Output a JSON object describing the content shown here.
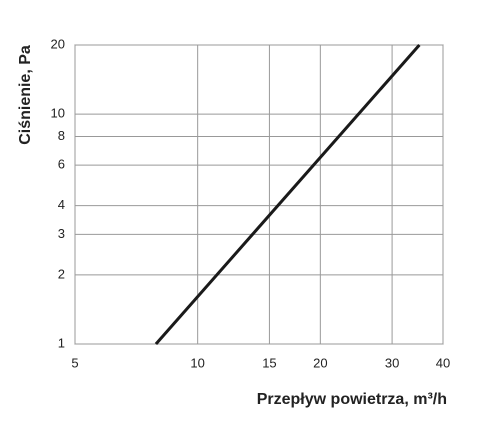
{
  "chart_data": {
    "type": "line",
    "x_label": "Przepływ powietrza, m³/h",
    "y_label": "Ciśnienie, Pa",
    "xscale": "log",
    "yscale": "log",
    "xlim": [
      5,
      40
    ],
    "ylim": [
      1,
      20
    ],
    "xticks": [
      5,
      10,
      15,
      20,
      30,
      40
    ],
    "yticks": [
      1,
      2,
      3,
      4,
      6,
      8,
      10,
      20
    ],
    "grid": true,
    "series": [
      {
        "color": "#1a1a1a",
        "x": [
          7.9,
          35
        ],
        "values": [
          1,
          20
        ]
      }
    ]
  }
}
